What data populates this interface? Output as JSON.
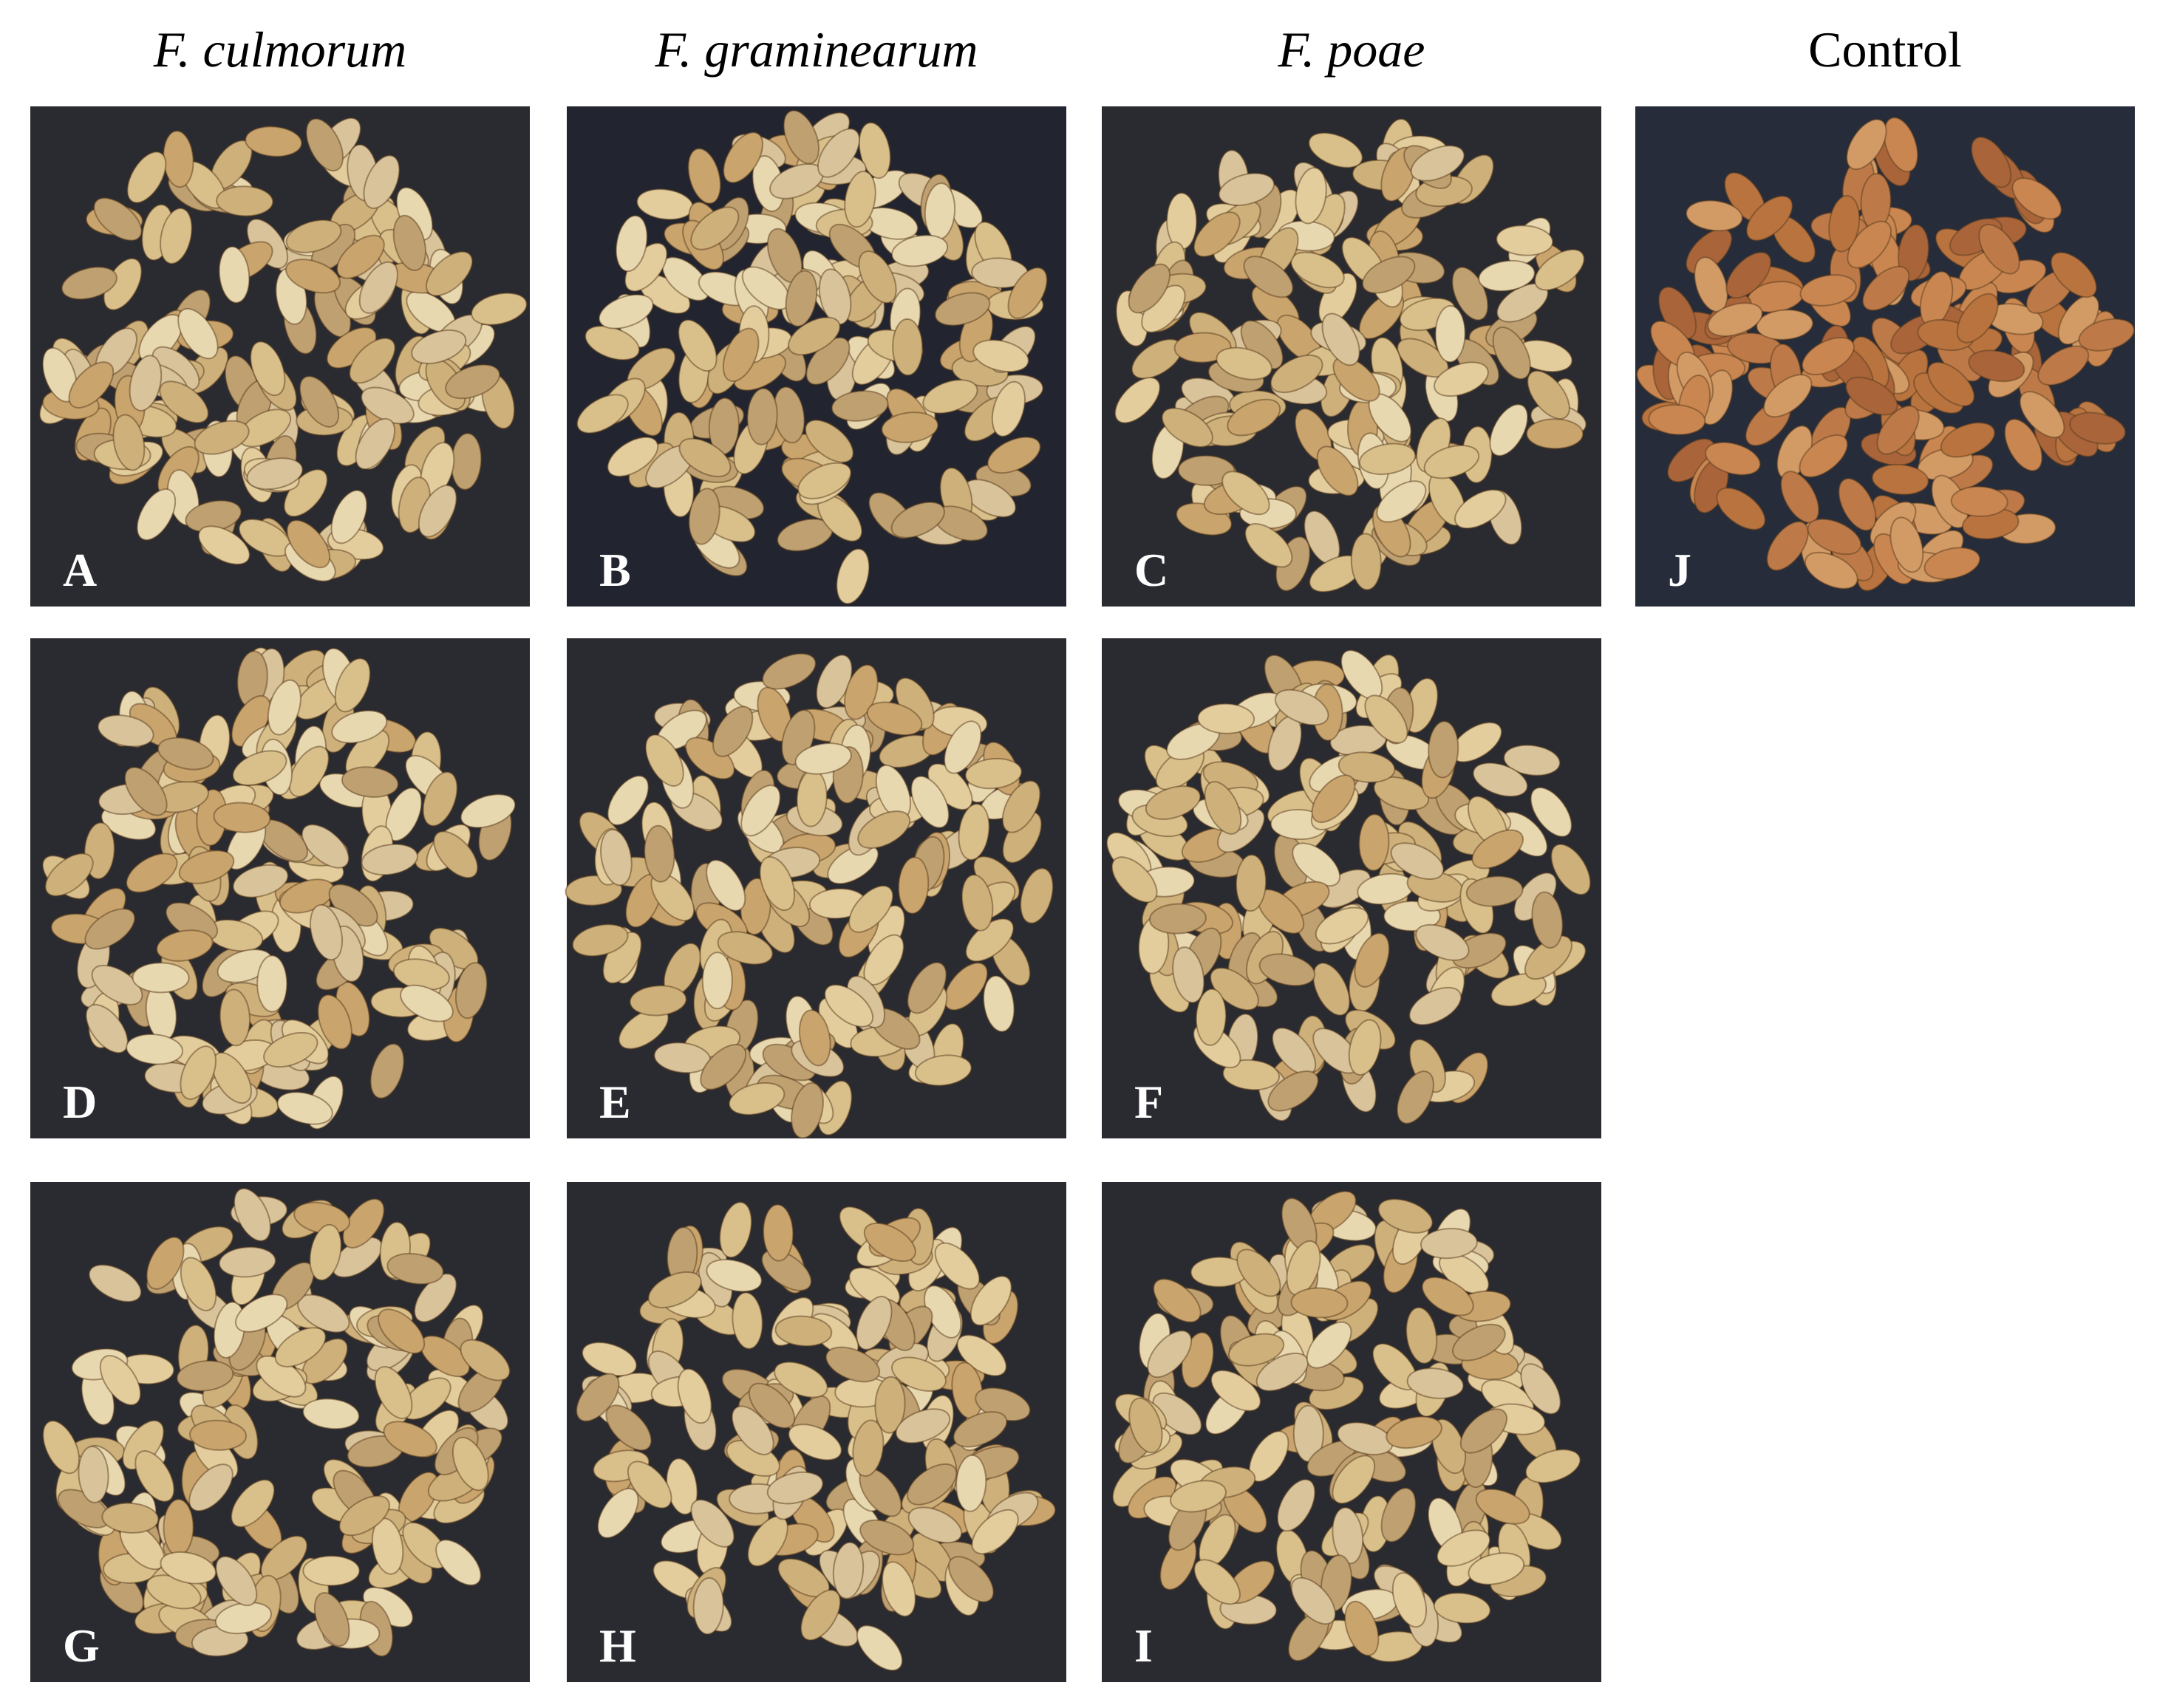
{
  "columns": [
    {
      "header": "F. culmorum",
      "panels": [
        {
          "label": "A"
        },
        {
          "label": "D"
        },
        {
          "label": "G"
        }
      ]
    },
    {
      "header": "F. graminearum",
      "panels": [
        {
          "label": "B"
        },
        {
          "label": "E"
        },
        {
          "label": "H"
        }
      ]
    },
    {
      "header": "F. poae",
      "panels": [
        {
          "label": "C"
        },
        {
          "label": "F"
        },
        {
          "label": "I"
        }
      ]
    },
    {
      "header": "Control",
      "panels": [
        {
          "label": "J"
        }
      ]
    }
  ]
}
